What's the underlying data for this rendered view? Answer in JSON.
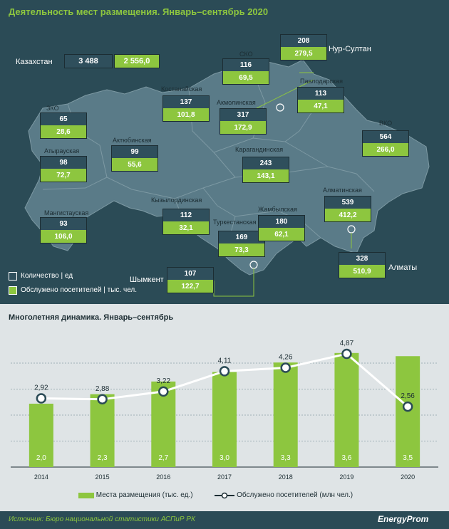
{
  "title": "Деятельность мест размещения. Январь–сентябрь 2020",
  "kazakhstan": {
    "label": "Казахстан",
    "count": "3 488",
    "served": "2 556,0"
  },
  "regions": [
    {
      "name": "ЗКО",
      "count": "65",
      "served": "28,6"
    },
    {
      "name": "Атырауская",
      "count": "98",
      "served": "72,7"
    },
    {
      "name": "Мангистауская",
      "count": "93",
      "served": "106,0"
    },
    {
      "name": "Актюбинская",
      "count": "99",
      "served": "55,6"
    },
    {
      "name": "Костанайская",
      "count": "137",
      "served": "101,8"
    },
    {
      "name": "СКО",
      "count": "116",
      "served": "69,5"
    },
    {
      "name": "Акмолинская",
      "count": "317",
      "served": "172,9"
    },
    {
      "name": "Нур-Султан",
      "count": "208",
      "served": "279,5"
    },
    {
      "name": "Павлодарская",
      "count": "113",
      "served": "47,1"
    },
    {
      "name": "ВКО",
      "count": "564",
      "served": "266,0"
    },
    {
      "name": "Карагандинская",
      "count": "243",
      "served": "143,1"
    },
    {
      "name": "Кызылординская",
      "count": "112",
      "served": "32,1"
    },
    {
      "name": "Туркестанская",
      "count": "169",
      "served": "73,3"
    },
    {
      "name": "Жамбылская",
      "count": "180",
      "served": "62,1"
    },
    {
      "name": "Алматинская",
      "count": "539",
      "served": "412,2"
    },
    {
      "name": "Алматы",
      "count": "328",
      "served": "510,9"
    },
    {
      "name": "Шымкент",
      "count": "107",
      "served": "122,7"
    }
  ],
  "map_legend": {
    "count": "Количество | ед",
    "served": "Обслужено посетителей | тыс. чел."
  },
  "chart_data": {
    "type": "bar",
    "title": "Многолетняя динамика.  Январь–сентябрь",
    "categories": [
      "2014",
      "2015",
      "2016",
      "2017",
      "2018",
      "2019",
      "2020"
    ],
    "series": [
      {
        "name": "Места размещения (тыс. ед.)",
        "type": "bar",
        "values": [
          2.0,
          2.3,
          2.7,
          3.0,
          3.3,
          3.6,
          3.5
        ],
        "labels": [
          "2,0",
          "2,3",
          "2,7",
          "3,0",
          "3,3",
          "3,6",
          "3,5"
        ],
        "color": "#8dc63f"
      },
      {
        "name": "Обслужено посетителей (млн чел.)",
        "type": "line",
        "values": [
          2.92,
          2.88,
          3.22,
          4.11,
          4.26,
          4.87,
          2.56
        ],
        "labels": [
          "2,92",
          "2,88",
          "3,22",
          "4,11",
          "4,26",
          "4,87",
          "2,56"
        ],
        "color": "#ffffff"
      }
    ],
    "grid": true,
    "legend_position": "bottom"
  },
  "source": "Источник: Бюро национальной статистики АСПиР РК",
  "brand": "EnergyProm",
  "colors": {
    "panel": "#2b4b56",
    "accent": "#8dc63f",
    "map": "#5a7b88",
    "count_box": "#2f4f5c"
  }
}
